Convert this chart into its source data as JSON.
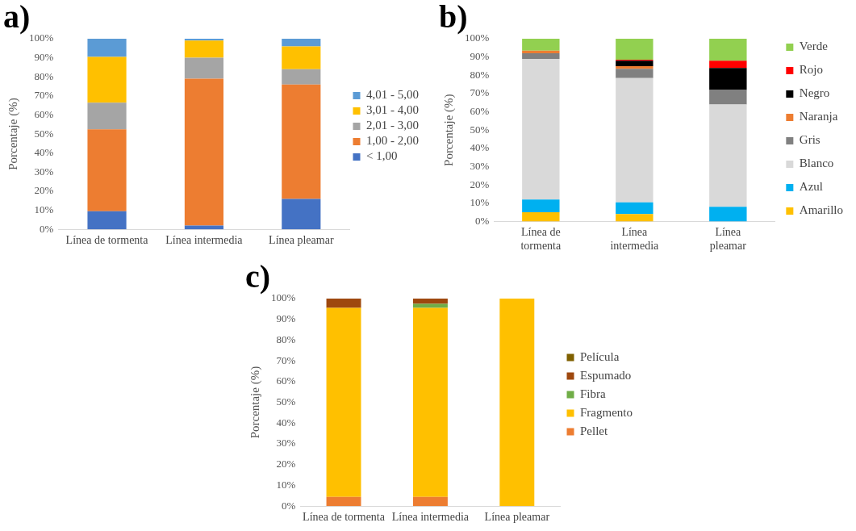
{
  "chart_data": [
    {
      "type": "bar",
      "title": "a)",
      "ylabel": "Porcentaje (%)",
      "categories": [
        "Línea de tormenta",
        "Línea intermedia",
        "Línea pleamar"
      ],
      "stacked": true,
      "legend": "right",
      "grid": false,
      "ylim": [
        0,
        100
      ],
      "yticks": [
        {
          "value": 0,
          "label": "0%"
        },
        {
          "value": 10,
          "label": "10%"
        },
        {
          "value": 20,
          "label": "20%"
        },
        {
          "value": 30,
          "label": "30%"
        },
        {
          "value": 40,
          "label": "40%"
        },
        {
          "value": 50,
          "label": "50%"
        },
        {
          "value": 60,
          "label": "60%"
        },
        {
          "value": 70,
          "label": "70%"
        },
        {
          "value": 80,
          "label": "80%"
        },
        {
          "value": 90,
          "label": "90%"
        },
        {
          "value": 100,
          "label": "100%"
        }
      ],
      "series": [
        {
          "name": "< 1,00",
          "color": "#4472c4",
          "values": [
            9.5,
            2,
            16
          ]
        },
        {
          "name": "1,00 - 2,00",
          "color": "#ed7d31",
          "values": [
            43,
            77,
            60
          ]
        },
        {
          "name": "2,01 - 3,00",
          "color": "#a5a5a5",
          "values": [
            14,
            11,
            8
          ]
        },
        {
          "name": "3,01 - 4,00",
          "color": "#ffc000",
          "values": [
            24,
            9,
            12
          ]
        },
        {
          "name": "4,01 - 5,00",
          "color": "#5b9bd5",
          "values": [
            9.5,
            1,
            4
          ]
        }
      ]
    },
    {
      "type": "bar",
      "title": "b)",
      "ylabel": "Porcentaje (%)",
      "categories": [
        "Línea de tormenta",
        "Línea intermedia",
        "Línea pleamar"
      ],
      "stacked": true,
      "legend": "right",
      "grid": false,
      "ylim": [
        0,
        100
      ],
      "yticks": [
        {
          "value": 0,
          "label": "0%"
        },
        {
          "value": 10,
          "label": "10%"
        },
        {
          "value": 20,
          "label": "20%"
        },
        {
          "value": 30,
          "label": "30%"
        },
        {
          "value": 40,
          "label": "40%"
        },
        {
          "value": 50,
          "label": "50%"
        },
        {
          "value": 60,
          "label": "60%"
        },
        {
          "value": 70,
          "label": "70%"
        },
        {
          "value": 80,
          "label": "80%"
        },
        {
          "value": 90,
          "label": "90%"
        },
        {
          "value": 100,
          "label": "100%"
        }
      ],
      "series": [
        {
          "name": "Amarillo",
          "color": "#ffc000",
          "values": [
            5,
            4,
            0
          ]
        },
        {
          "name": "Azul",
          "color": "#00b0f0",
          "values": [
            7,
            6.5,
            8
          ]
        },
        {
          "name": "Blanco",
          "color": "#d9d9d9",
          "values": [
            77,
            68,
            56
          ]
        },
        {
          "name": "Gris",
          "color": "#808080",
          "values": [
            3,
            5,
            8
          ]
        },
        {
          "name": "Naranja",
          "color": "#ed7d31",
          "values": [
            1.5,
            1.5,
            0
          ]
        },
        {
          "name": "Negro",
          "color": "#000000",
          "values": [
            0,
            3,
            12
          ]
        },
        {
          "name": "Rojo",
          "color": "#ff0000",
          "values": [
            0,
            0.5,
            4
          ]
        },
        {
          "name": "Verde",
          "color": "#92d050",
          "values": [
            6.5,
            11.5,
            12
          ]
        }
      ]
    },
    {
      "type": "bar",
      "title": "c)",
      "ylabel": "Porcentaje (%)",
      "categories": [
        "Línea de tormenta",
        "Línea intermedia",
        "Línea pleamar"
      ],
      "stacked": true,
      "legend": "right",
      "grid": false,
      "ylim": [
        0,
        100
      ],
      "yticks": [
        {
          "value": 0,
          "label": "0%"
        },
        {
          "value": 10,
          "label": "10%"
        },
        {
          "value": 20,
          "label": "20%"
        },
        {
          "value": 30,
          "label": "30%"
        },
        {
          "value": 40,
          "label": "40%"
        },
        {
          "value": 50,
          "label": "50%"
        },
        {
          "value": 60,
          "label": "60%"
        },
        {
          "value": 70,
          "label": "70%"
        },
        {
          "value": 80,
          "label": "80%"
        },
        {
          "value": 90,
          "label": "90%"
        },
        {
          "value": 100,
          "label": "100%"
        }
      ],
      "series": [
        {
          "name": "Pellet",
          "color": "#ed7d31",
          "values": [
            4.5,
            4.5,
            0
          ]
        },
        {
          "name": "Fragmento",
          "color": "#ffc000",
          "values": [
            91,
            91,
            100
          ]
        },
        {
          "name": "Fibra",
          "color": "#70ad47",
          "values": [
            0,
            2,
            0
          ]
        },
        {
          "name": "Espumado",
          "color": "#9e480e",
          "values": [
            4.5,
            2.5,
            0
          ]
        },
        {
          "name": "Película",
          "color": "#7f6000",
          "values": [
            0,
            0,
            0
          ]
        }
      ]
    }
  ]
}
